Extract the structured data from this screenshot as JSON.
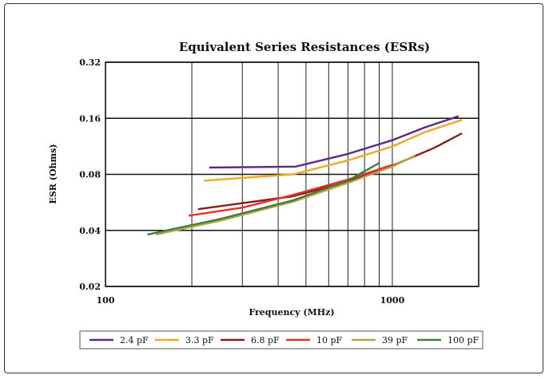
{
  "chart_data": {
    "type": "line",
    "title": "Equivalent Series Resistances (ESRs)",
    "xlabel": "Frequency (MHz)",
    "ylabel": "ESR (Ohms)",
    "xscale": "log",
    "yscale": "log",
    "xlim": [
      100,
      2000
    ],
    "ylim": [
      0.02,
      0.32
    ],
    "x_tick_labels": [
      "100",
      "1000"
    ],
    "y_tick_labels": [
      "0.32",
      "0.16",
      "0.08",
      "0.04",
      "0.02"
    ],
    "y_tick_values": [
      0.32,
      0.16,
      0.08,
      0.04,
      0.02
    ],
    "grid": true,
    "legend_position": "bottom",
    "series": [
      {
        "name": "2.4 pF",
        "color": "#5b2a86",
        "points": [
          [
            230,
            0.087
          ],
          [
            460,
            0.088
          ],
          [
            700,
            0.103
          ],
          [
            1000,
            0.122
          ],
          [
            1300,
            0.143
          ],
          [
            1700,
            0.164
          ]
        ]
      },
      {
        "name": "3.3 pF",
        "color": "#f5a623",
        "points": [
          [
            220,
            0.074
          ],
          [
            450,
            0.08
          ],
          [
            700,
            0.095
          ],
          [
            1000,
            0.113
          ],
          [
            1300,
            0.135
          ],
          [
            1750,
            0.157
          ]
        ]
      },
      {
        "name": "6.8 pF",
        "color": "#8b1a1a",
        "points": [
          [
            210,
            0.052
          ],
          [
            450,
            0.061
          ],
          [
            700,
            0.073
          ],
          [
            1000,
            0.089
          ],
          [
            1400,
            0.111
          ],
          [
            1750,
            0.133
          ]
        ]
      },
      {
        "name": "10 pF",
        "color": "#e8302a",
        "points": [
          [
            195,
            0.048
          ],
          [
            300,
            0.053
          ],
          [
            450,
            0.062
          ],
          [
            700,
            0.075
          ],
          [
            1000,
            0.09
          ]
        ]
      },
      {
        "name": "39 pF",
        "color": "#b5a642",
        "points": [
          [
            150,
            0.038
          ],
          [
            250,
            0.045
          ],
          [
            450,
            0.057
          ],
          [
            700,
            0.072
          ],
          [
            1000,
            0.088
          ],
          [
            1200,
            0.101
          ]
        ]
      },
      {
        "name": "100 pF",
        "color": "#3e7d3a",
        "points": [
          [
            140,
            0.038
          ],
          [
            250,
            0.046
          ],
          [
            450,
            0.058
          ],
          [
            700,
            0.074
          ],
          [
            900,
            0.092
          ]
        ]
      }
    ]
  }
}
